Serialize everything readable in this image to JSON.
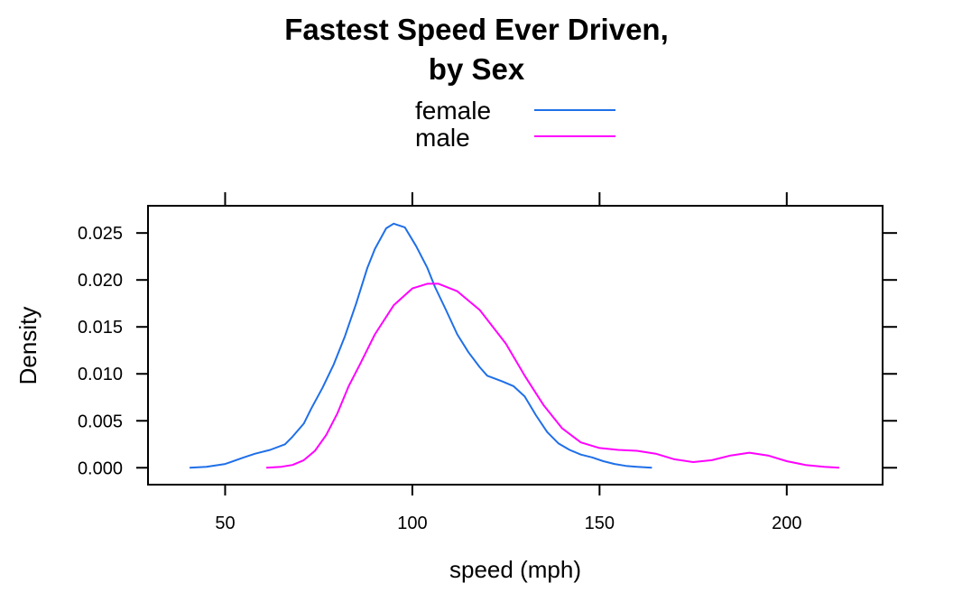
{
  "chart_data": {
    "type": "line",
    "title": "Fastest Speed Ever Driven,",
    "subtitle": "by Sex",
    "xlabel": "speed (mph)",
    "ylabel": "Density",
    "xlim": [
      29.4,
      225.6
    ],
    "ylim": [
      -0.0018,
      0.0279
    ],
    "x_ticks": [
      50,
      100,
      150,
      200
    ],
    "x_tick_labels": [
      "50",
      "100",
      "150",
      "200"
    ],
    "y_ticks": [
      0,
      0.005,
      0.01,
      0.015,
      0.02,
      0.025
    ],
    "y_tick_labels": [
      "0.000",
      "0.005",
      "0.010",
      "0.015",
      "0.020",
      "0.025"
    ],
    "grid": false,
    "legend_position": "top",
    "series": [
      {
        "name": "female",
        "color": "#1f6fe8",
        "x": [
          40.5,
          45,
          50,
          55,
          58,
          62,
          66,
          68,
          71,
          73,
          76,
          79,
          82,
          85,
          88,
          90,
          93,
          95,
          98,
          101,
          104,
          106,
          109,
          112,
          115,
          118,
          120,
          124,
          127,
          130,
          133,
          136,
          139,
          142,
          145,
          148,
          151,
          154,
          157,
          160,
          164
        ],
        "values": [
          0.0,
          0.0001,
          0.0004,
          0.0011,
          0.0015,
          0.0019,
          0.0025,
          0.0033,
          0.0047,
          0.0063,
          0.0085,
          0.011,
          0.014,
          0.0175,
          0.0213,
          0.0233,
          0.0255,
          0.026,
          0.0256,
          0.0236,
          0.0213,
          0.0193,
          0.0168,
          0.0142,
          0.0123,
          0.0107,
          0.0098,
          0.0092,
          0.0087,
          0.0076,
          0.0056,
          0.0038,
          0.0026,
          0.0019,
          0.0014,
          0.0011,
          0.0007,
          0.0004,
          0.0002,
          0.0001,
          0.0
        ]
      },
      {
        "name": "male",
        "color": "#ff00ff",
        "x": [
          61,
          65,
          68,
          71,
          74,
          77,
          80,
          83,
          86,
          90,
          95,
          100,
          104,
          107,
          112,
          118,
          125,
          130,
          135,
          140,
          145,
          150,
          155,
          160,
          165,
          170,
          175,
          180,
          185,
          190,
          195,
          200,
          205,
          210,
          214
        ],
        "values": [
          0.0,
          0.0001,
          0.0003,
          0.0008,
          0.0018,
          0.0035,
          0.0058,
          0.0087,
          0.011,
          0.0142,
          0.0173,
          0.0191,
          0.0196,
          0.0196,
          0.0188,
          0.0168,
          0.0132,
          0.0098,
          0.0067,
          0.0042,
          0.0027,
          0.0021,
          0.0019,
          0.0018,
          0.0015,
          0.0009,
          0.0006,
          0.0008,
          0.0013,
          0.0016,
          0.0013,
          0.0007,
          0.0003,
          0.0001,
          0.0
        ]
      }
    ]
  }
}
